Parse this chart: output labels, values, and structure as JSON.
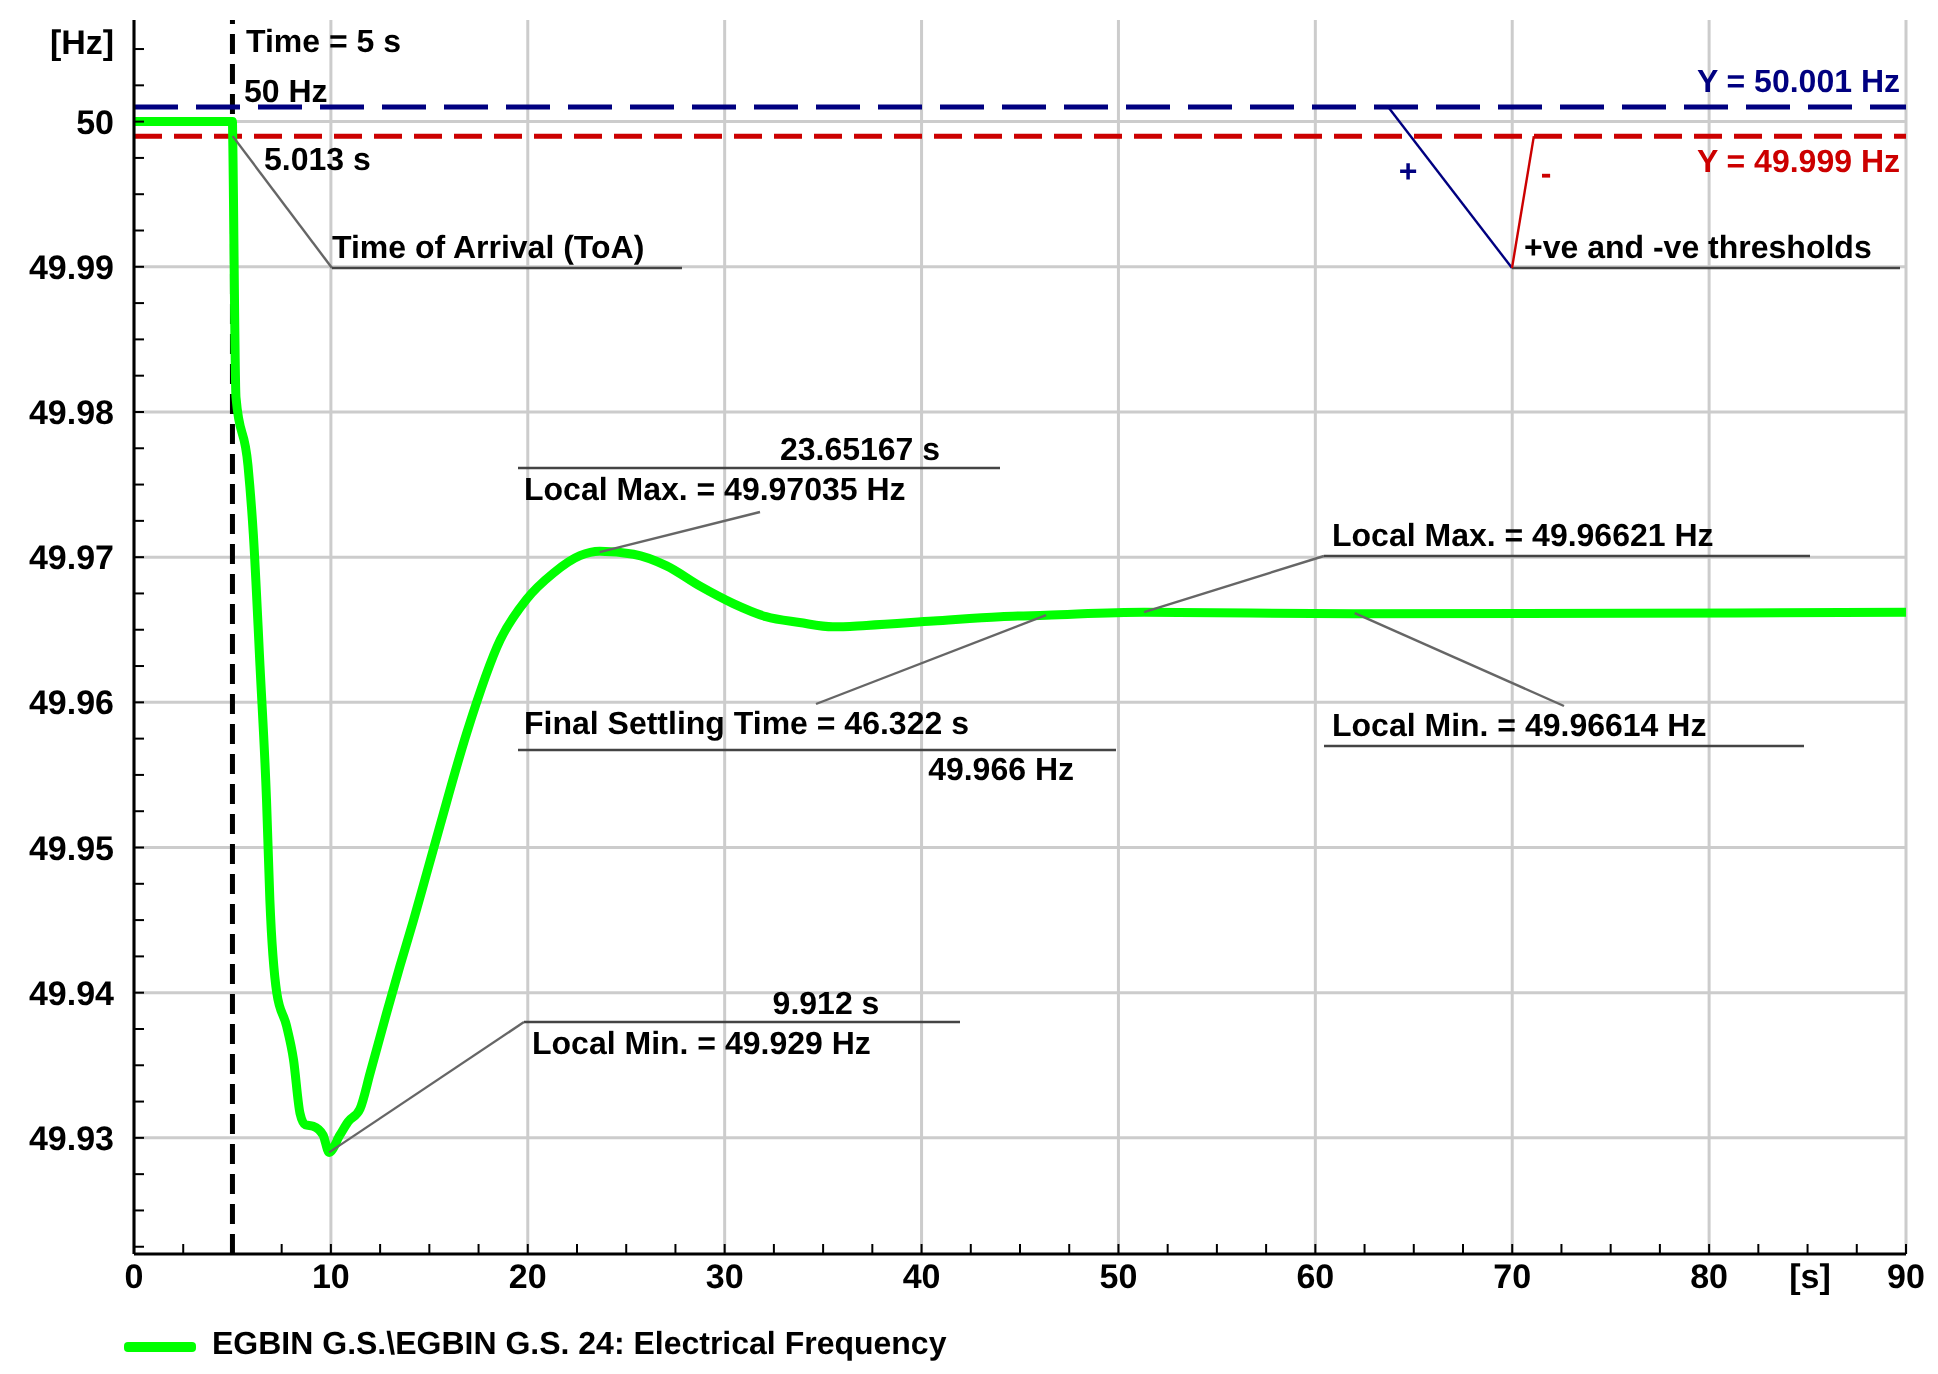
{
  "chart_data": {
    "type": "line",
    "xlabel": "[s]",
    "ylabel": "[Hz]",
    "x": [
      0,
      5,
      5.013,
      5.18,
      5.79,
      6.06,
      6.4,
      6.73,
      6.9,
      7.25,
      7.75,
      8.1,
      8.43,
      8.7,
      9.1,
      9.6,
      9.912,
      10.46,
      10.87,
      11.48,
      12.0,
      12.83,
      13.5,
      14.2,
      14.86,
      15.54,
      16.9,
      18.6,
      19.94,
      21.3,
      22.65,
      23.65167,
      25.37,
      27.05,
      28.75,
      30.44,
      32.1,
      33.8,
      35.5,
      37.2,
      40.6,
      44.0,
      46.322,
      51.3,
      62,
      90
    ],
    "series": [
      {
        "name": "EGBIN G.S.\\EGBIN G.S. 24: Electrical Frequency",
        "color": "#00ff00",
        "values": [
          50,
          50,
          49.999,
          49.981,
          49.9763,
          49.9716,
          49.9625,
          49.9533,
          49.9464,
          49.94,
          49.9377,
          49.9354,
          49.9317,
          49.9309,
          49.9308,
          49.9302,
          49.929,
          49.9302,
          49.9311,
          49.932,
          49.9345,
          49.9386,
          49.9418,
          49.945,
          49.9482,
          49.9515,
          49.9579,
          49.9643,
          49.9671,
          49.9689,
          49.9701,
          49.9704,
          49.9702,
          49.9694,
          49.968,
          49.9668,
          49.9659,
          49.9655,
          49.9652,
          49.9653,
          49.9656,
          49.9659,
          49.966,
          49.9662,
          49.9661,
          49.9662
        ]
      }
    ],
    "xlim": [
      0,
      90
    ],
    "ylim": [
      49.922,
      50.007
    ],
    "xticks": [
      0,
      {
        "value": 2.5,
        "label": null
      },
      {
        "value": 5,
        "label": null
      },
      {
        "value": 7.5,
        "label": null
      },
      10,
      {
        "value": 12.5,
        "label": null
      },
      {
        "value": 15,
        "label": null
      },
      {
        "value": 17.5,
        "label": null
      },
      20,
      {
        "value": 22.5,
        "label": null
      },
      {
        "value": 25,
        "label": null
      },
      {
        "value": 27.5,
        "label": null
      },
      30,
      {
        "value": 32.5,
        "label": null
      },
      {
        "value": 35,
        "label": null
      },
      {
        "value": 37.5,
        "label": null
      },
      40,
      {
        "value": 42.5,
        "label": null
      },
      {
        "value": 45,
        "label": null
      },
      {
        "value": 47.5,
        "label": null
      },
      50,
      {
        "value": 52.5,
        "label": null
      },
      {
        "value": 55,
        "label": null
      },
      {
        "value": 57.5,
        "label": null
      },
      60,
      {
        "value": 62.5,
        "label": null
      },
      {
        "value": 65,
        "label": null
      },
      {
        "value": 67.5,
        "label": null
      },
      70,
      {
        "value": 72.5,
        "label": null
      },
      {
        "value": 75,
        "label": null
      },
      {
        "value": 77.5,
        "label": null
      },
      80,
      {
        "value": 82.5,
        "label": null
      },
      {
        "value": 85,
        "label": null
      },
      {
        "value": 87.5,
        "label": null
      },
      90
    ],
    "yticks": [
      {
        "value": 49.9225,
        "label": null
      },
      {
        "value": 49.925,
        "label": null
      },
      {
        "value": 49.9275,
        "label": null
      },
      49.93,
      {
        "value": 49.9325,
        "label": null
      },
      {
        "value": 49.935,
        "label": null
      },
      {
        "value": 49.9375,
        "label": null
      },
      49.94,
      {
        "value": 49.9425,
        "label": null
      },
      {
        "value": 49.945,
        "label": null
      },
      {
        "value": 49.9475,
        "label": null
      },
      49.95,
      {
        "value": 49.9525,
        "label": null
      },
      {
        "value": 49.955,
        "label": null
      },
      {
        "value": 49.9575,
        "label": null
      },
      49.96,
      {
        "value": 49.9625,
        "label": null
      },
      {
        "value": 49.965,
        "label": null
      },
      {
        "value": 49.9675,
        "label": null
      },
      49.97,
      {
        "value": 49.9725,
        "label": null
      },
      {
        "value": 49.975,
        "label": null
      },
      {
        "value": 49.9775,
        "label": null
      },
      49.98,
      {
        "value": 49.9825,
        "label": null
      },
      {
        "value": 49.985,
        "label": null
      },
      {
        "value": 49.9875,
        "label": null
      },
      49.99,
      {
        "value": 49.9925,
        "label": null
      },
      {
        "value": 49.995,
        "label": null
      },
      {
        "value": 49.9975,
        "label": null
      },
      50,
      {
        "value": 50.0025,
        "label": null
      },
      {
        "value": 50.005,
        "label": null
      }
    ],
    "grid": true,
    "legend": "bottom left",
    "marker": "none",
    "line_style": "solid",
    "ref_lines": [
      {
        "axis": "x",
        "value": 5,
        "label": "Time = 5 s",
        "color": "#000000",
        "line_style": "dashed"
      },
      {
        "axis": "y",
        "value": 50.001,
        "label": "Y = 50.001 Hz",
        "color": "#000080",
        "line_style": "dashed"
      },
      {
        "axis": "y",
        "value": 49.999,
        "label": "Y = 49.999 Hz",
        "color": "#cc0000",
        "line_style": "dashed"
      }
    ],
    "annotations": [
      {
        "text": "50 Hz",
        "x": 5,
        "y": 50
      },
      {
        "text": "5.013 s",
        "x": 5.013,
        "y": 49.999
      },
      {
        "text": "Time of Arrival (ToA)",
        "x": 5.013,
        "y": 49.999
      },
      "23.65167 s",
      {
        "text": "Local Max. = 49.97035 Hz",
        "x": 23.65167,
        "y": 49.97035
      },
      {
        "text": "Final Settling Time = 46.322 s",
        "x": 46.322,
        "y": 49.966
      },
      "49.966 Hz",
      {
        "text": "Local Max. = 49.96621 Hz",
        "x": 51.3,
        "y": 49.96621
      },
      {
        "text": "Local Min. = 49.96614 Hz",
        "x": 62,
        "y": 49.96614
      },
      "9.912 s",
      {
        "text": "Local Min. = 49.929 Hz",
        "x": 9.912,
        "y": 49.929
      },
      {
        "text": "+ve and -ve thresholds",
        "x": 63.7,
        "y": 50.001
      },
      "+",
      {
        "text": "-",
        "x": 71.1,
        "y": 49.999
      }
    ]
  }
}
